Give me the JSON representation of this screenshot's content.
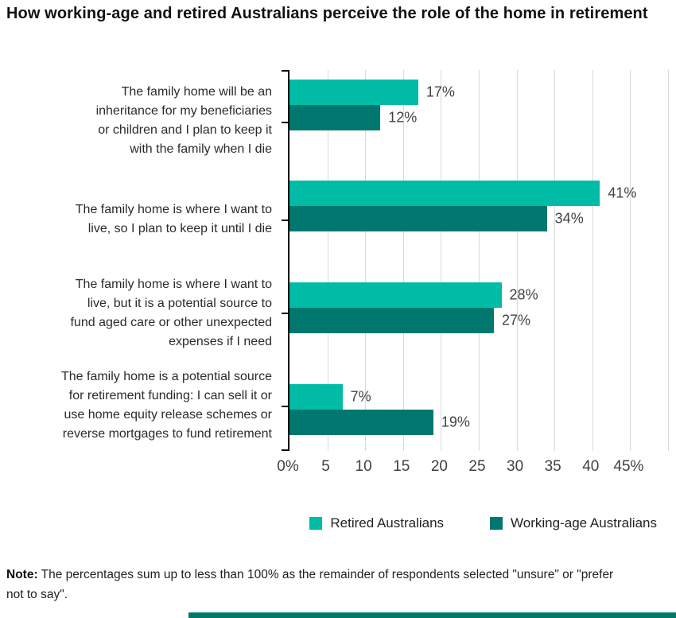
{
  "title": "How working-age and retired Australians perceive the role of the home in retirement",
  "chart_data": {
    "type": "bar",
    "orientation": "horizontal",
    "title": "How working-age and retired Australians perceive the role of the home in retirement",
    "categories": [
      "The family home will be an inheritance for my beneficiaries or children and I plan to keep it with the family when I die",
      "The family home is where I want to live, so I plan to keep it until I die",
      "The family home is where I want to live, but it is a potential source to fund aged care or other unexpected expenses if I need",
      "The family home is a potential source for retirement funding: I can sell it or use home equity release schemes or reverse mortgages to fund retirement"
    ],
    "category_lines": [
      [
        "The family home will be an",
        "inheritance for my beneficiaries",
        "or children and I plan to keep it",
        "with the family when I die"
      ],
      [
        "The family home is where I want to",
        "live, so I plan to keep it until I die"
      ],
      [
        "The family home is where I want to",
        "live, but it is a potential source to",
        "fund aged care or other unexpected",
        "expenses if I need"
      ],
      [
        "The family home is a potential source",
        "for retirement funding: I can sell it or",
        "use home equity release schemes or",
        "reverse mortgages to fund retirement"
      ]
    ],
    "series": [
      {
        "name": "Retired Australians",
        "color": "#00BCA6",
        "values": [
          17,
          41,
          28,
          7
        ],
        "labels": [
          "17%",
          "41%",
          "28%",
          "7%"
        ]
      },
      {
        "name": "Working-age Australians",
        "color": "#00786F",
        "values": [
          12,
          34,
          27,
          19
        ],
        "labels": [
          "12%",
          "34%",
          "27%",
          "19%"
        ]
      }
    ],
    "xlim": [
      0,
      50
    ],
    "x_tick_values": [
      0,
      5,
      10,
      15,
      20,
      25,
      30,
      35,
      40,
      45
    ],
    "x_tick_labels": [
      "0%",
      "5",
      "10",
      "15",
      "20",
      "25",
      "30",
      "35",
      "40",
      "45%"
    ],
    "gridline_values": [
      5,
      10,
      15,
      20,
      25,
      30,
      35,
      40,
      45,
      50
    ],
    "grid": "vertical",
    "legend_position": "bottom",
    "colors": {
      "grid": "#D9D9D9",
      "axis": "#000000",
      "value_text": "#3F4448",
      "category_text": "#2B2B2B"
    }
  },
  "note": {
    "label": "Note:",
    "text": " The percentages sum up to less than 100% as the remainder of respondents selected \"unsure\" or \"prefer not to say\"."
  },
  "footer": {
    "divider_color": "#00796B"
  }
}
